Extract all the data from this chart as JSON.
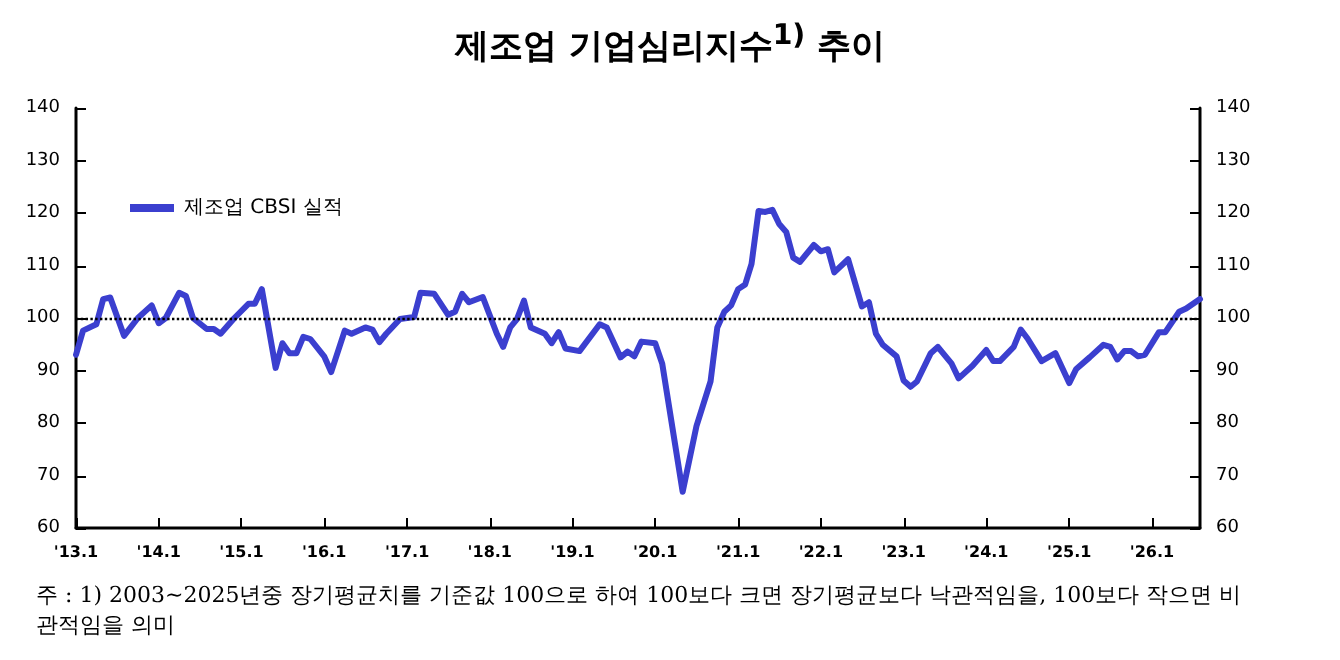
{
  "chart_data": {
    "type": "line",
    "title": "제조업 기업심리지수$^{1)}$ 추이",
    "annotations": [
      "주 : 1) 2003~2025년중 장기평균치를 기준값 100으로 하여 100보다 크면 장기평균보다 낙관적임을, 100보다 작으면 비관적임을 의미"
    ],
    "xlim": [
      "2013-01",
      "2026-08"
    ],
    "xticks": [
      {
        "value": "2013-01",
        "label": "'13.1"
      },
      {
        "value": "2014-01",
        "label": "'14.1"
      },
      {
        "value": "2015-01",
        "label": "'15.1"
      },
      {
        "value": "2016-01",
        "label": "'16.1"
      },
      {
        "value": "2017-01",
        "label": "'17.1"
      },
      {
        "value": "2018-01",
        "label": "'18.1"
      },
      {
        "value": "2019-01",
        "label": "'19.1"
      },
      {
        "value": "2020-01",
        "label": "'20.1"
      },
      {
        "value": "2021-01",
        "label": "'21.1"
      },
      {
        "value": "2022-01",
        "label": "'22.1"
      },
      {
        "value": "2023-01",
        "label": "'23.1"
      },
      {
        "value": "2024-01",
        "label": "'24.1"
      },
      {
        "value": "2025-01",
        "label": "'25.1"
      },
      {
        "value": "2026-01",
        "label": "'26.1"
      }
    ],
    "ylim": [
      60,
      140
    ],
    "yticks": [
      60,
      70,
      80,
      90,
      100,
      110,
      120,
      130,
      140
    ],
    "y2lim": [
      60,
      140
    ],
    "y2ticks": [
      60,
      70,
      80,
      90,
      100,
      110,
      120,
      130,
      140
    ],
    "grid": false,
    "legend": "top left",
    "marker": "none",
    "line_style": "solid",
    "ref_lines": [
      {
        "axis": "y",
        "value": 100,
        "color": "#000000",
        "line_style": "dotted"
      }
    ],
    "series": [
      {
        "name": "제조업 CBSI 실적",
        "color": "#3b3fcf",
        "x": [
          "2013-01",
          "2013-02",
          "2013-04",
          "2013-05",
          "2013-06",
          "2013-08",
          "2013-10",
          "2013-12",
          "2014-01",
          "2014-02",
          "2014-04",
          "2014-05",
          "2014-06",
          "2014-08",
          "2014-09",
          "2014-10",
          "2014-12",
          "2015-02",
          "2015-03",
          "2015-04",
          "2015-06",
          "2015-07",
          "2015-08",
          "2015-09",
          "2015-10",
          "2015-11",
          "2016-01",
          "2016-02",
          "2016-04",
          "2016-05",
          "2016-07",
          "2016-08",
          "2016-09",
          "2016-10",
          "2016-12",
          "2017-02",
          "2017-03",
          "2017-05",
          "2017-07",
          "2017-08",
          "2017-09",
          "2017-10",
          "2017-12",
          "2018-02",
          "2018-03",
          "2018-04",
          "2018-05",
          "2018-06",
          "2018-07",
          "2018-09",
          "2018-10",
          "2018-11",
          "2018-12",
          "2019-02",
          "2019-05",
          "2019-06",
          "2019-08",
          "2019-09",
          "2019-10",
          "2019-11",
          "2020-01",
          "2020-02",
          "2020-05",
          "2020-07",
          "2020-09",
          "2020-10",
          "2020-11",
          "2020-12",
          "2021-01",
          "2021-02",
          "2021-03",
          "2021-04",
          "2021-05",
          "2021-06",
          "2021-07",
          "2021-08",
          "2021-09",
          "2021-10",
          "2021-12",
          "2022-01",
          "2022-02",
          "2022-03",
          "2022-05",
          "2022-07",
          "2022-08",
          "2022-09",
          "2022-10",
          "2022-12",
          "2023-01",
          "2023-02",
          "2023-03",
          "2023-05",
          "2023-06",
          "2023-08",
          "2023-09",
          "2023-11",
          "2024-01",
          "2024-02",
          "2024-03",
          "2024-05",
          "2024-06",
          "2024-07",
          "2024-09",
          "2024-11",
          "2025-01",
          "2025-02",
          "2025-04",
          "2025-06",
          "2025-07",
          "2025-08",
          "2025-09",
          "2025-10",
          "2025-11",
          "2025-12",
          "2026-02",
          "2026-03",
          "2026-05",
          "2026-06",
          "2026-08"
        ],
        "values": [
          93,
          97.6,
          98.8,
          103.6,
          103.9,
          96.6,
          100,
          102.4,
          99,
          100,
          104.8,
          104.2,
          100,
          97.9,
          97.9,
          97,
          100,
          102.7,
          102.7,
          105.5,
          90.5,
          95.2,
          93.3,
          93.3,
          96.4,
          96,
          92.7,
          89.7,
          97.6,
          97,
          98.2,
          97.8,
          95.4,
          97,
          99.8,
          100.2,
          104.8,
          104.6,
          100.6,
          101.2,
          104.6,
          103,
          104,
          97,
          94.5,
          98.2,
          99.8,
          103.3,
          98.2,
          97,
          95.2,
          97.3,
          94.2,
          93.7,
          98.8,
          98.2,
          92.5,
          93.6,
          92.7,
          95.5,
          95.2,
          91.3,
          66.9,
          79.4,
          87.9,
          98.2,
          101.2,
          102.4,
          105.5,
          106.4,
          110.3,
          120.4,
          120.2,
          120.6,
          117.9,
          116.4,
          111.5,
          110.7,
          113.9,
          112.7,
          113.1,
          108.7,
          111.2,
          102.2,
          103,
          97,
          94.9,
          92.7,
          88.1,
          86.9,
          87.9,
          93.3,
          94.5,
          91.3,
          88.5,
          90.9,
          93.9,
          91.8,
          91.8,
          94.5,
          97.8,
          96.1,
          91.8,
          93.3,
          87.6,
          90.3,
          92.5,
          94.9,
          94.5,
          92.1,
          93.7,
          93.7,
          92.7,
          93,
          97.3,
          97.3,
          101.2,
          101.8,
          103.6
        ]
      }
    ]
  }
}
